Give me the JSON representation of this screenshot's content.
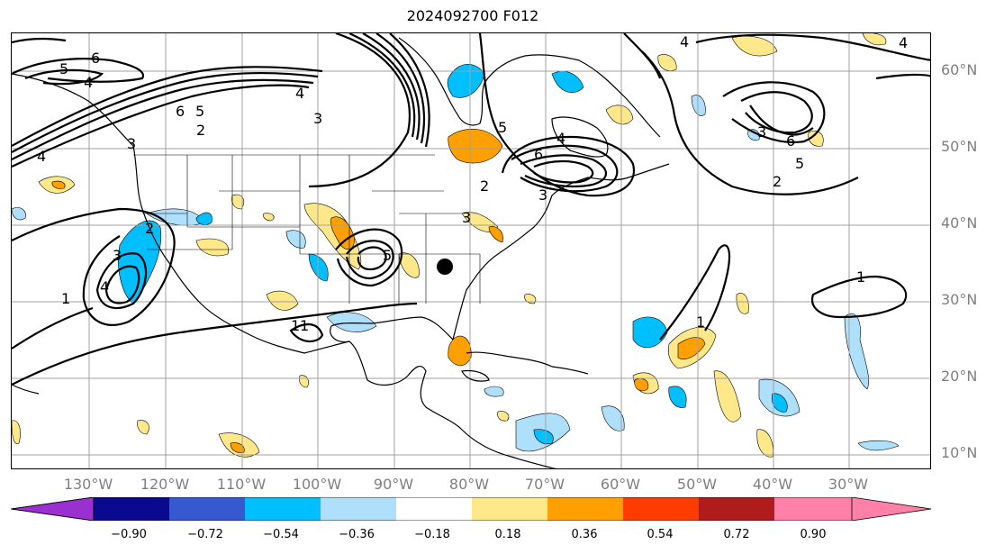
{
  "title": "2024092700 F012",
  "lat_labels": [
    "60°N",
    "50°N",
    "40°N",
    "30°N",
    "20°N",
    "10°N"
  ],
  "lon_labels": [
    "130°W",
    "120°W",
    "110°W",
    "100°W",
    "90°W",
    "80°W",
    "70°W",
    "60°W",
    "50°W",
    "40°W",
    "30°W"
  ],
  "colorbar": {
    "ticks": [
      "−0.90",
      "−0.72",
      "−0.54",
      "−0.36",
      "−0.18",
      "0.18",
      "0.36",
      "0.54",
      "0.72",
      "0.90"
    ],
    "colors": [
      "#9b30d0",
      "#0a0a90",
      "#3658d0",
      "#00bfff",
      "#aee0fb",
      "#ffffff",
      "#ffe88a",
      "#ffa000",
      "#ff3c00",
      "#b01c1c",
      "#ff80a8"
    ]
  },
  "contour_labels": [
    "6",
    "5",
    "4",
    "4",
    "3",
    "2",
    "6",
    "5",
    "4",
    "3",
    "2",
    "1",
    "3",
    "4",
    "5",
    "6",
    "2",
    "3",
    "4",
    "1",
    "5",
    "4",
    "3",
    "2",
    "4",
    "6",
    "5",
    "3",
    "1",
    "1",
    "1"
  ],
  "marker": "black-dot"
}
